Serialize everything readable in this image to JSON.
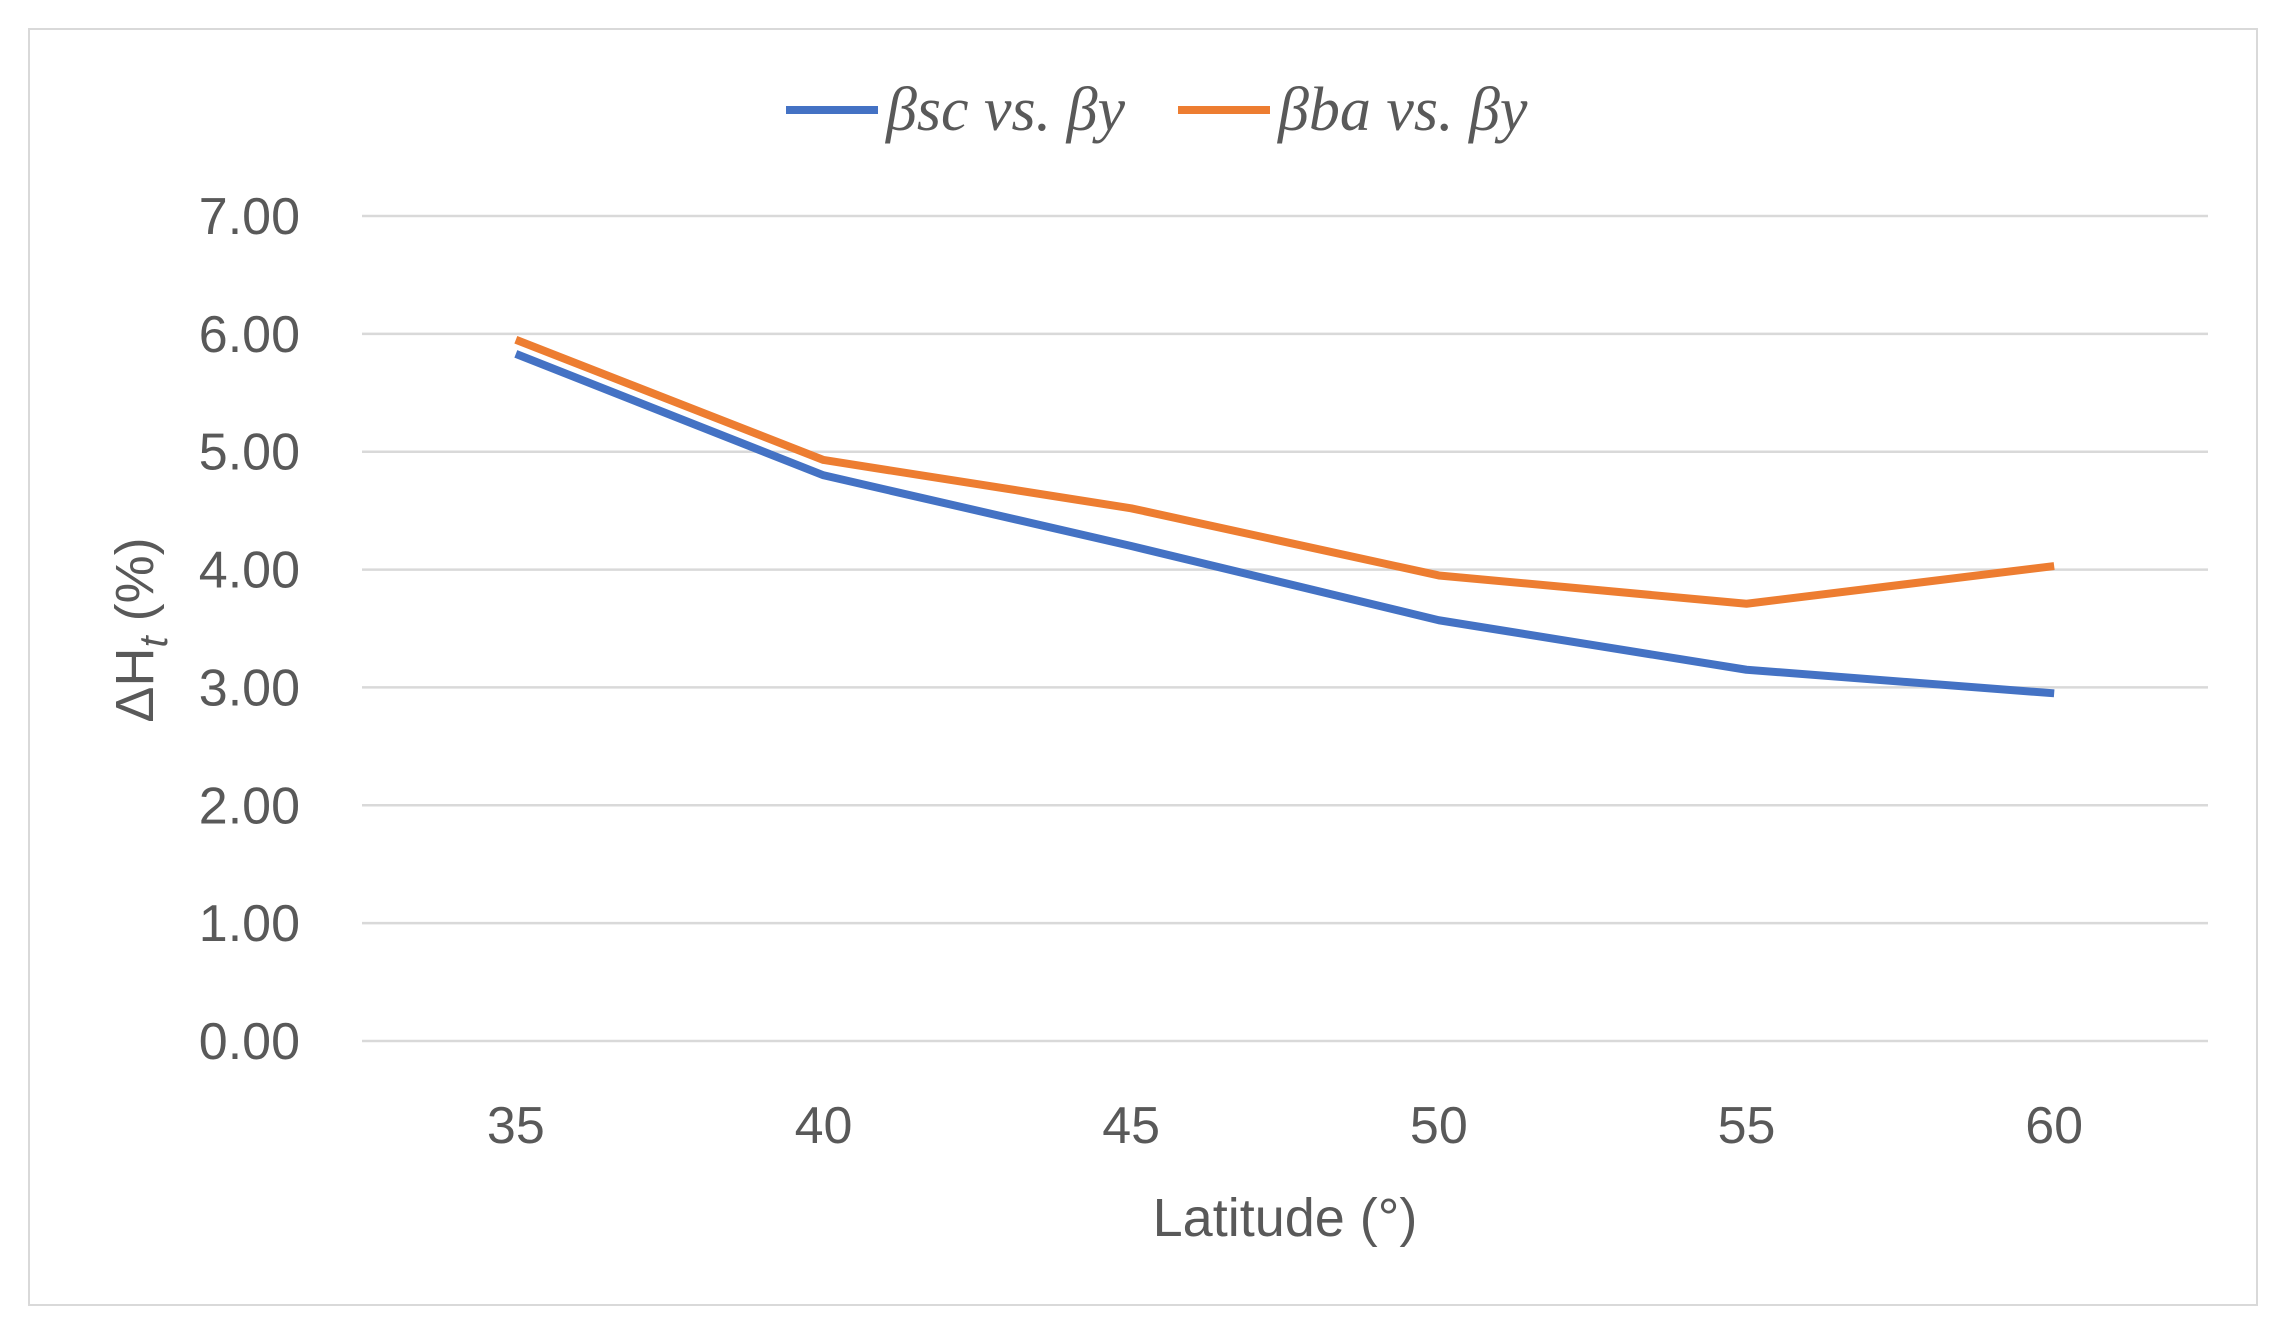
{
  "chart_data": {
    "type": "line",
    "x": [
      35,
      40,
      45,
      50,
      55,
      60
    ],
    "categories": [
      "35",
      "40",
      "45",
      "50",
      "55",
      "60"
    ],
    "series": [
      {
        "name": "βsc vs. βy",
        "color": "#4472C4",
        "values": [
          5.83,
          4.8,
          4.2,
          3.57,
          3.15,
          2.95
        ]
      },
      {
        "name": "βba vs. βy",
        "color": "#ED7D31",
        "values": [
          5.95,
          4.93,
          4.52,
          3.95,
          3.71,
          4.03
        ]
      }
    ],
    "title": "",
    "xlabel": "Latitude (°)",
    "ylabel": {
      "prefix": "ΔH",
      "subscript": "t",
      "suffix": " (%)"
    },
    "ylim": [
      0,
      7
    ],
    "yticks": [
      "0.00",
      "1.00",
      "2.00",
      "3.00",
      "4.00",
      "5.00",
      "6.00",
      "7.00"
    ],
    "grid": true,
    "legend_position": "top-center",
    "gridline_color": "#d9d9d9"
  }
}
